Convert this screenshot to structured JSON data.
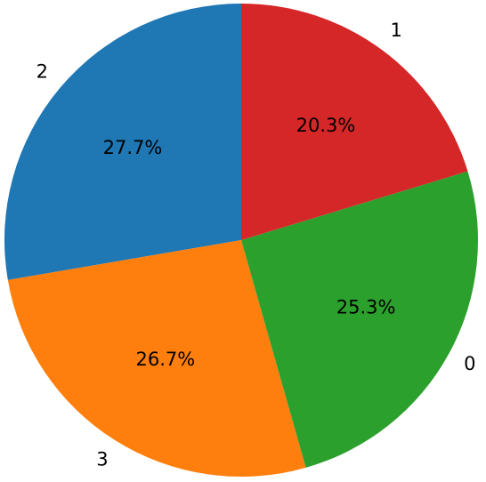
{
  "chart_data": {
    "type": "pie",
    "categories": [
      "2",
      "3",
      "0",
      "1"
    ],
    "values": [
      27.7,
      26.7,
      25.3,
      20.3
    ],
    "value_labels": [
      "27.7%",
      "26.7%",
      "25.3%",
      "20.3%"
    ],
    "colors": [
      "#1f77b4",
      "#ff7f0e",
      "#2ca02c",
      "#d62728"
    ]
  }
}
